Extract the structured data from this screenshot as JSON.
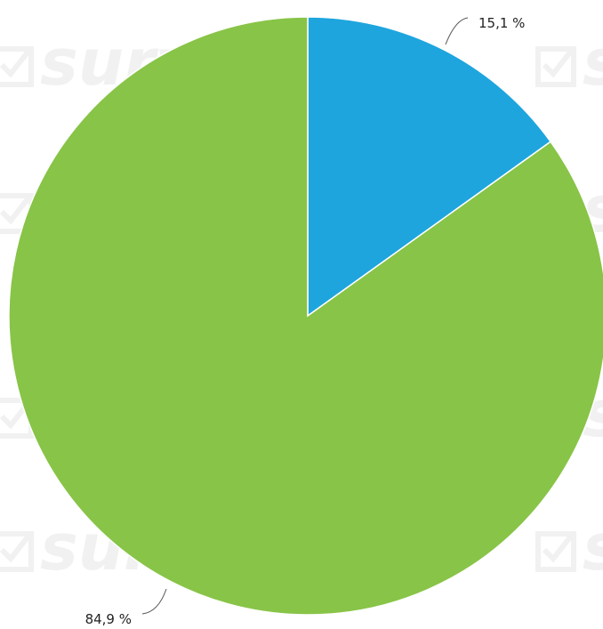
{
  "chart_data": {
    "type": "pie",
    "title": "",
    "categories": [
      "",
      ""
    ],
    "values": [
      15.1,
      84.9
    ],
    "labels": [
      "15,1 %",
      "84,9 %"
    ],
    "colors": [
      "#1ea5de",
      "#88c447"
    ],
    "start_angle_deg": 0,
    "direction": "clockwise",
    "legend": "none"
  },
  "watermark": {
    "text": "survio"
  }
}
